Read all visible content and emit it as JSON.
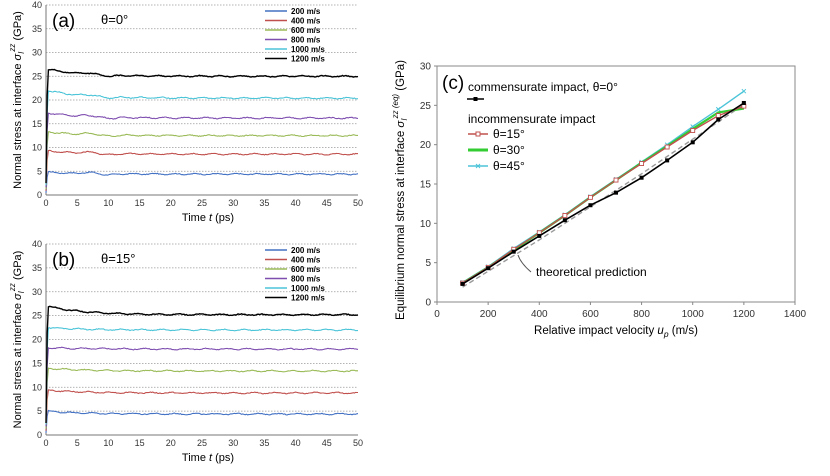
{
  "chart_data": [
    {
      "id": "a",
      "type": "line",
      "panel_label": "(a)",
      "angle_label": "θ=0°",
      "xlabel": "Time",
      "xlabel_var": "t",
      "xlabel_unit": "(ps)",
      "ylabel_prefix": "Normal stress at interface",
      "ylabel_sym": "σ",
      "ylabel_sub": "I",
      "ylabel_sup": "zz",
      "ylabel_unit": "(GPa)",
      "xlim": [
        0,
        50
      ],
      "ylim": [
        0,
        40
      ],
      "xticks": [
        0,
        5,
        10,
        15,
        20,
        25,
        30,
        35,
        40,
        45,
        50
      ],
      "yticks": [
        0,
        5,
        10,
        15,
        20,
        25,
        30,
        35,
        40
      ],
      "series": [
        {
          "name": "200 m/s",
          "color": "#4472c4",
          "plateau": 4.4,
          "peak": 4.8
        },
        {
          "name": "400 m/s",
          "color": "#c0504d",
          "plateau": 8.6,
          "peak": 9.3
        },
        {
          "name": "600 m/s",
          "color": "#9bbb59",
          "plateau": 12.5,
          "peak": 13.3
        },
        {
          "name": "800 m/s",
          "color": "#7f4fb0",
          "plateau": 16.2,
          "peak": 17.3
        },
        {
          "name": "1000 m/s",
          "color": "#4bc4d8",
          "plateau": 20.4,
          "peak": 22.0
        },
        {
          "name": "1200 m/s",
          "color": "#000000",
          "plateau": 25.0,
          "peak": 26.5
        }
      ]
    },
    {
      "id": "b",
      "type": "line",
      "panel_label": "(b)",
      "angle_label": "θ=15°",
      "xlabel": "Time",
      "xlabel_var": "t",
      "xlabel_unit": "(ps)",
      "ylabel_prefix": "Normal stress at interface",
      "ylabel_sym": "σ",
      "ylabel_sub": "I",
      "ylabel_sup": "zz",
      "ylabel_unit": "(GPa)",
      "xlim": [
        0,
        50
      ],
      "ylim": [
        0,
        40
      ],
      "xticks": [
        0,
        5,
        10,
        15,
        20,
        25,
        30,
        35,
        40,
        45,
        50
      ],
      "yticks": [
        0,
        5,
        10,
        15,
        20,
        25,
        30,
        35,
        40
      ],
      "series": [
        {
          "name": "200 m/s",
          "color": "#4472c4",
          "plateau": 4.4,
          "peak": 5.0
        },
        {
          "name": "400 m/s",
          "color": "#c0504d",
          "plateau": 8.8,
          "peak": 9.4
        },
        {
          "name": "600 m/s",
          "color": "#9bbb59",
          "plateau": 13.4,
          "peak": 14.0
        },
        {
          "name": "800 m/s",
          "color": "#7f4fb0",
          "plateau": 18.0,
          "peak": 18.3
        },
        {
          "name": "1000 m/s",
          "color": "#4bc4d8",
          "plateau": 22.0,
          "peak": 22.5
        },
        {
          "name": "1200 m/s",
          "color": "#000000",
          "plateau": 25.2,
          "peak": 27.0
        }
      ]
    },
    {
      "id": "c",
      "type": "line",
      "panel_label": "(c)",
      "xlabel": "Relative impact velocity",
      "xlabel_var": "u",
      "xlabel_sub": "p",
      "xlabel_unit": "(m/s)",
      "ylabel_prefix": "Equilibrium normal stress at interface",
      "ylabel_sym": "σ",
      "ylabel_sub": "I",
      "ylabel_sup": "zz (eq)",
      "ylabel_unit": "(GPa)",
      "xlim": [
        0,
        1400
      ],
      "ylim": [
        0,
        30
      ],
      "xticks": [
        0,
        200,
        400,
        600,
        800,
        1000,
        1200,
        1400
      ],
      "yticks": [
        0,
        5,
        10,
        15,
        20,
        25,
        30
      ],
      "legend_heading_1": "commensurate impact, θ=0°",
      "legend_heading_2": "incommensurate impact",
      "annotation": "theoretical prediction",
      "x": [
        100,
        200,
        300,
        400,
        500,
        600,
        700,
        800,
        900,
        1000,
        1100,
        1200
      ],
      "series": [
        {
          "name": "commensurate θ=0°",
          "color": "#000000",
          "marker": "square-filled",
          "values": [
            2.3,
            4.3,
            6.4,
            8.4,
            10.4,
            12.3,
            13.9,
            15.8,
            18.0,
            20.3,
            23.2,
            25.3
          ]
        },
        {
          "name": "θ=15°",
          "color": "#c0504d",
          "marker": "square-open",
          "values": [
            2.4,
            4.4,
            6.7,
            8.8,
            11.0,
            13.3,
            15.5,
            17.6,
            19.7,
            21.8,
            23.7,
            24.9
          ]
        },
        {
          "name": "θ=30°",
          "color": "#33cc33",
          "marker": "none",
          "values": [
            2.4,
            4.4,
            6.6,
            8.8,
            11.0,
            13.3,
            15.5,
            17.7,
            19.8,
            22.0,
            24.1,
            24.6
          ]
        },
        {
          "name": "θ=45°",
          "color": "#4bc4d8",
          "marker": "x",
          "values": [
            2.5,
            4.5,
            6.8,
            8.9,
            11.1,
            13.4,
            15.6,
            17.8,
            20.0,
            22.3,
            24.5,
            26.8
          ]
        },
        {
          "name": "theoretical prediction",
          "color": "#999999",
          "marker": "none",
          "dash": true,
          "values": [
            1.9,
            3.9,
            5.9,
            7.9,
            10.0,
            12.1,
            14.2,
            16.3,
            18.5,
            20.7,
            22.9,
            25.1
          ]
        }
      ]
    }
  ]
}
